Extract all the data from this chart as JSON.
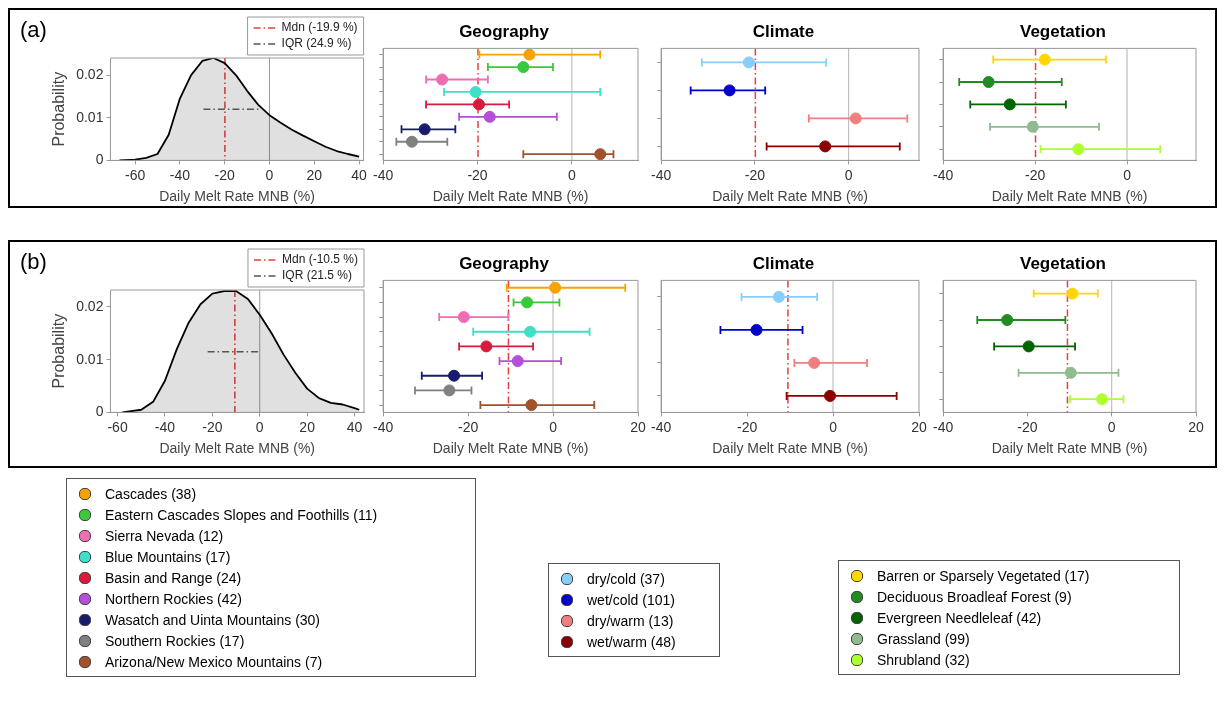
{
  "chart_data": [
    {
      "type": "area",
      "ylabel": "Probability",
      "xlabel": "Daily Melt Rate MNB (%)",
      "annotations": [
        "(a)"
      ],
      "xlim": [
        -71,
        42
      ],
      "xticks": [
        -60,
        -40,
        -20,
        0,
        20,
        40
      ],
      "ylim": [
        0,
        0.024
      ],
      "yticks": [
        0,
        0.01,
        0.02
      ],
      "grid": false,
      "legend": "top right",
      "marker": "none",
      "ref_lines": [
        {
          "axis": "x",
          "value": 0,
          "color": "#808080"
        },
        {
          "axis": "x",
          "value": -19.9,
          "label": "Mdn (-19.9 %)",
          "color": "#e8403c",
          "line_style": "dashed"
        }
      ],
      "series": [
        {
          "type": "area",
          "color": "#000000",
          "x": [
            -67,
            -60,
            -55,
            -50,
            -45,
            -40,
            -35,
            -30,
            -25,
            -20,
            -15,
            -10,
            -5,
            0,
            5,
            10,
            15,
            20,
            25,
            30,
            35,
            40
          ],
          "values": [
            0,
            0.0002,
            0.0006,
            0.0015,
            0.006,
            0.0145,
            0.02,
            0.0233,
            0.024,
            0.0228,
            0.02,
            0.0163,
            0.013,
            0.0106,
            0.0088,
            0.0072,
            0.0058,
            0.0045,
            0.0032,
            0.0022,
            0.0015,
            0.0009
          ]
        },
        {
          "type": "line",
          "name": "IQR (24.9 %)",
          "color": "#555555",
          "line_style": "dashed",
          "x": [
            -29.5,
            -4.6
          ],
          "values": [
            0.012,
            0.012
          ]
        }
      ]
    },
    {
      "type": "scatter",
      "orientation": "horizontal",
      "title": "Geography",
      "xlabel": "Daily Melt Rate MNB (%)",
      "categories": [
        null,
        null,
        null,
        null,
        null,
        null,
        null,
        null,
        null
      ],
      "xlim": [
        -40,
        14
      ],
      "xticks": [
        -40,
        -20,
        0
      ],
      "grid": false,
      "tick_labels": "x",
      "legend": "bottom",
      "marker": "circle",
      "ref_lines": [
        {
          "axis": "x",
          "value": 0,
          "color": "#a0a0a0"
        },
        {
          "axis": "x",
          "value": -19.9,
          "color": "#e8403c",
          "line_style": "dashed"
        }
      ],
      "series": [
        {
          "name": "Cascades (38)",
          "color": "#f5a300",
          "values": [
            -9.0,
            null,
            null,
            null,
            null,
            null,
            null,
            null,
            null
          ],
          "errors": [
            [
              -19.6,
              6.0
            ],
            null,
            null,
            null,
            null,
            null,
            null,
            null,
            null
          ]
        },
        {
          "name": "Eastern Cascades Slopes and Foothills (11)",
          "color": "#3cc83c",
          "values": [
            null,
            -10.3,
            null,
            null,
            null,
            null,
            null,
            null,
            null
          ],
          "errors": [
            null,
            [
              -17.8,
              -4.0
            ],
            null,
            null,
            null,
            null,
            null,
            null,
            null
          ]
        },
        {
          "name": "Sierra Nevada (12)",
          "color": "#ee6eb4",
          "values": [
            null,
            null,
            -27.5,
            null,
            null,
            null,
            null,
            null,
            null
          ],
          "errors": [
            null,
            null,
            [
              -30.9,
              -17.8
            ],
            null,
            null,
            null,
            null,
            null,
            null
          ]
        },
        {
          "name": "Blue Mountains (17)",
          "color": "#40e0c8",
          "values": [
            null,
            null,
            null,
            -20.4,
            null,
            null,
            null,
            null,
            null
          ],
          "errors": [
            null,
            null,
            null,
            [
              -27.1,
              6.0
            ],
            null,
            null,
            null,
            null,
            null
          ]
        },
        {
          "name": "Basin and Range (24)",
          "color": "#d81b3c",
          "values": [
            null,
            null,
            null,
            null,
            -19.7,
            null,
            null,
            null,
            null
          ],
          "errors": [
            null,
            null,
            null,
            null,
            [
              -30.9,
              -13.3
            ],
            null,
            null,
            null,
            null
          ]
        },
        {
          "name": "Northern Rockies (42)",
          "color": "#b44fd8",
          "values": [
            null,
            null,
            null,
            null,
            null,
            -17.4,
            null,
            null,
            null
          ],
          "errors": [
            null,
            null,
            null,
            null,
            null,
            [
              -23.9,
              -3.2
            ],
            null,
            null,
            null
          ]
        },
        {
          "name": "Wasatch and Uinta Mountains (30)",
          "color": "#1a1a6e",
          "values": [
            null,
            null,
            null,
            null,
            null,
            null,
            -31.2,
            null,
            null
          ],
          "errors": [
            null,
            null,
            null,
            null,
            null,
            null,
            [
              -36.1,
              -24.7
            ],
            null,
            null
          ]
        },
        {
          "name": "Southern Rockies (17)",
          "color": "#808080",
          "values": [
            null,
            null,
            null,
            null,
            null,
            null,
            null,
            -33.9,
            null
          ],
          "errors": [
            null,
            null,
            null,
            null,
            null,
            null,
            null,
            [
              -37.2,
              -26.4
            ],
            null
          ]
        },
        {
          "name": "Arizona/New Mexico Mountains (7)",
          "color": "#a0522d",
          "values": [
            null,
            null,
            null,
            null,
            null,
            null,
            null,
            null,
            6.0
          ],
          "errors": [
            null,
            null,
            null,
            null,
            null,
            null,
            null,
            null,
            [
              -10.3,
              8.8
            ]
          ]
        }
      ]
    },
    {
      "type": "scatter",
      "orientation": "horizontal",
      "title": "Climate",
      "xlabel": "Daily Melt Rate MNB (%)",
      "categories": [
        null,
        null,
        null,
        null
      ],
      "xlim": [
        -40,
        15
      ],
      "xticks": [
        -40,
        -20,
        0
      ],
      "grid": false,
      "tick_labels": "x",
      "legend": "bottom",
      "marker": "circle",
      "ref_lines": [
        {
          "axis": "x",
          "value": 0,
          "color": "#a0a0a0"
        },
        {
          "axis": "x",
          "value": -19.9,
          "color": "#e8403c",
          "line_style": "dashed"
        }
      ],
      "series": [
        {
          "name": "dry/cold (37)",
          "color": "#87cefa",
          "values": [
            -21.3,
            null,
            null,
            null
          ],
          "errors": [
            [
              -31.3,
              -4.8
            ],
            null,
            null,
            null
          ]
        },
        {
          "name": "wet/cold (101)",
          "color": "#0000cd",
          "values": [
            null,
            -25.4,
            null,
            null
          ],
          "errors": [
            null,
            [
              -33.7,
              -17.8
            ],
            null,
            null
          ]
        },
        {
          "name": "dry/warm (13)",
          "color": "#f08080",
          "values": [
            null,
            null,
            1.5,
            null
          ],
          "errors": [
            null,
            null,
            [
              -8.5,
              12.5
            ],
            null
          ]
        },
        {
          "name": "wet/warm (48)",
          "color": "#8b0000",
          "values": [
            null,
            null,
            null,
            -5.0
          ],
          "errors": [
            null,
            null,
            null,
            [
              -17.5,
              10.9
            ]
          ]
        }
      ]
    },
    {
      "type": "scatter",
      "orientation": "horizontal",
      "title": "Vegetation",
      "xlabel": "Daily Melt Rate MNB (%)",
      "categories": [
        null,
        null,
        null,
        null,
        null
      ],
      "xlim": [
        -40,
        15
      ],
      "xticks": [
        -40,
        -20,
        0
      ],
      "grid": false,
      "tick_labels": "x",
      "legend": "bottom",
      "marker": "circle",
      "ref_lines": [
        {
          "axis": "x",
          "value": 0,
          "color": "#a0a0a0"
        },
        {
          "axis": "x",
          "value": -19.9,
          "color": "#e8403c",
          "line_style": "dashed"
        }
      ],
      "series": [
        {
          "name": "Barren or Sparsely Vegetated (17)",
          "color": "#ffd700",
          "values": [
            -17.9,
            null,
            null,
            null,
            null
          ],
          "errors": [
            [
              -29.1,
              -4.6
            ],
            null,
            null,
            null,
            null
          ]
        },
        {
          "name": "Deciduous Broadleaf Forest (9)",
          "color": "#228b22",
          "values": [
            null,
            -30.1,
            null,
            null,
            null
          ],
          "errors": [
            null,
            [
              -36.5,
              -14.2
            ],
            null,
            null,
            null
          ]
        },
        {
          "name": "Evergreen Needleleaf (42)",
          "color": "#006400",
          "values": [
            null,
            null,
            -25.5,
            null,
            null
          ],
          "errors": [
            null,
            null,
            [
              -34.1,
              -13.3
            ],
            null,
            null
          ]
        },
        {
          "name": "Grassland (99)",
          "color": "#8fbc8f",
          "values": [
            null,
            null,
            null,
            -20.5,
            null
          ],
          "errors": [
            null,
            null,
            null,
            [
              -29.8,
              -6.1
            ],
            null
          ]
        },
        {
          "name": "Shrubland (32)",
          "color": "#adff2f",
          "values": [
            null,
            null,
            null,
            null,
            -10.6
          ],
          "errors": [
            null,
            null,
            null,
            null,
            [
              -18.8,
              7.2
            ]
          ]
        }
      ]
    },
    {
      "type": "area",
      "ylabel": "Probability",
      "xlabel": "Daily Melt Rate MNB (%)",
      "annotations": [
        "(b)"
      ],
      "xlim": [
        -63,
        44
      ],
      "xticks": [
        -60,
        -40,
        -20,
        0,
        20,
        40
      ],
      "ylim": [
        0,
        0.0232
      ],
      "yticks": [
        0,
        0.01,
        0.02
      ],
      "grid": false,
      "legend": "top right",
      "marker": "none",
      "ref_lines": [
        {
          "axis": "x",
          "value": 0,
          "color": "#808080"
        },
        {
          "axis": "x",
          "value": -10.5,
          "label": "Mdn (-10.5 %)",
          "color": "#e8403c",
          "line_style": "dashed"
        }
      ],
      "series": [
        {
          "type": "area",
          "color": "#000000",
          "x": [
            -58,
            -50,
            -45,
            -40,
            -35,
            -30,
            -25,
            -20,
            -15,
            -10,
            -5,
            0,
            5,
            10,
            15,
            20,
            25,
            30,
            35,
            40,
            42
          ],
          "values": [
            0,
            0.0005,
            0.002,
            0.006,
            0.012,
            0.017,
            0.0205,
            0.0225,
            0.023,
            0.023,
            0.0215,
            0.0185,
            0.015,
            0.011,
            0.0075,
            0.0045,
            0.0027,
            0.0018,
            0.0015,
            0.0008,
            0.0005
          ]
        },
        {
          "type": "line",
          "name": "IQR (21.5 %)",
          "color": "#555555",
          "line_style": "dashed",
          "x": [
            -22,
            -0.5
          ],
          "values": [
            0.0115,
            0.0115
          ]
        }
      ]
    },
    {
      "type": "scatter",
      "orientation": "horizontal",
      "title": "Geography",
      "xlabel": "Daily Melt Rate MNB (%)",
      "categories": [
        null,
        null,
        null,
        null,
        null,
        null,
        null,
        null,
        null
      ],
      "xlim": [
        -40,
        20
      ],
      "xticks": [
        -40,
        -20,
        0,
        20
      ],
      "grid": false,
      "tick_labels": "x",
      "marker": "circle",
      "ref_lines": [
        {
          "axis": "x",
          "value": 0,
          "color": "#a0a0a0"
        },
        {
          "axis": "x",
          "value": -10.5,
          "color": "#e8403c",
          "line_style": "dashed"
        }
      ],
      "series": [
        {
          "color": "#f5a300",
          "values": [
            0.5,
            null,
            null,
            null,
            null,
            null,
            null,
            null,
            null
          ],
          "errors": [
            [
              -10.9,
              17.0
            ],
            null,
            null,
            null,
            null,
            null,
            null,
            null,
            null
          ]
        },
        {
          "color": "#3cc83c",
          "values": [
            null,
            -6.1,
            null,
            null,
            null,
            null,
            null,
            null,
            null
          ],
          "errors": [
            null,
            [
              -9.3,
              1.5
            ],
            null,
            null,
            null,
            null,
            null,
            null,
            null
          ]
        },
        {
          "color": "#ee6eb4",
          "values": [
            null,
            null,
            -21.0,
            null,
            null,
            null,
            null,
            null,
            null
          ],
          "errors": [
            null,
            null,
            [
              -26.8,
              -10.5
            ],
            null,
            null,
            null,
            null,
            null,
            null
          ]
        },
        {
          "color": "#40e0c8",
          "values": [
            null,
            null,
            null,
            -5.4,
            null,
            null,
            null,
            null,
            null
          ],
          "errors": [
            null,
            null,
            null,
            [
              -18.8,
              8.6
            ],
            null,
            null,
            null,
            null,
            null
          ]
        },
        {
          "color": "#d81b3c",
          "values": [
            null,
            null,
            null,
            null,
            -15.7,
            null,
            null,
            null,
            null
          ],
          "errors": [
            null,
            null,
            null,
            null,
            [
              -22.1,
              -4.7
            ],
            null,
            null,
            null,
            null
          ]
        },
        {
          "color": "#b44fd8",
          "values": [
            null,
            null,
            null,
            null,
            null,
            -8.3,
            null,
            null,
            null
          ],
          "errors": [
            null,
            null,
            null,
            null,
            null,
            [
              -12.6,
              1.9
            ],
            null,
            null,
            null
          ]
        },
        {
          "color": "#1a1a6e",
          "values": [
            null,
            null,
            null,
            null,
            null,
            null,
            -23.3,
            null,
            null
          ],
          "errors": [
            null,
            null,
            null,
            null,
            null,
            null,
            [
              -30.9,
              -16.7
            ],
            null,
            null
          ]
        },
        {
          "color": "#808080",
          "values": [
            null,
            null,
            null,
            null,
            null,
            null,
            null,
            -24.4,
            null
          ],
          "errors": [
            null,
            null,
            null,
            null,
            null,
            null,
            null,
            [
              -32.5,
              -19.2
            ],
            null
          ]
        },
        {
          "color": "#a0522d",
          "values": [
            null,
            null,
            null,
            null,
            null,
            null,
            null,
            null,
            -5.1
          ],
          "errors": [
            null,
            null,
            null,
            null,
            null,
            null,
            null,
            null,
            [
              -17.1,
              9.7
            ]
          ]
        }
      ]
    },
    {
      "type": "scatter",
      "orientation": "horizontal",
      "title": "Climate",
      "xlabel": "Daily Melt Rate MNB (%)",
      "categories": [
        null,
        null,
        null,
        null
      ],
      "xlim": [
        -40,
        20
      ],
      "xticks": [
        -40,
        -20,
        0,
        20
      ],
      "grid": false,
      "tick_labels": "x",
      "marker": "circle",
      "ref_lines": [
        {
          "axis": "x",
          "value": 0,
          "color": "#a0a0a0"
        },
        {
          "axis": "x",
          "value": -10.5,
          "color": "#e8403c",
          "line_style": "dashed"
        }
      ],
      "series": [
        {
          "color": "#87cefa",
          "values": [
            -12.6,
            null,
            null,
            null
          ],
          "errors": [
            [
              -21.3,
              -3.7
            ],
            null,
            null,
            null
          ]
        },
        {
          "color": "#0000cd",
          "values": [
            null,
            -17.8,
            null,
            null
          ],
          "errors": [
            null,
            [
              -26.2,
              -7.1
            ],
            null,
            null
          ]
        },
        {
          "color": "#f08080",
          "values": [
            null,
            null,
            -4.4,
            null
          ],
          "errors": [
            null,
            null,
            [
              -9.0,
              7.9
            ],
            null
          ]
        },
        {
          "color": "#8b0000",
          "values": [
            null,
            null,
            null,
            -0.7
          ],
          "errors": [
            null,
            null,
            null,
            [
              -10.8,
              14.8
            ]
          ]
        }
      ]
    },
    {
      "type": "scatter",
      "orientation": "horizontal",
      "title": "Vegetation",
      "xlabel": "Daily Melt Rate MNB (%)",
      "categories": [
        null,
        null,
        null,
        null,
        null
      ],
      "xlim": [
        -40,
        20
      ],
      "xticks": [
        -40,
        -20,
        0,
        20
      ],
      "grid": false,
      "tick_labels": "x",
      "marker": "circle",
      "ref_lines": [
        {
          "axis": "x",
          "value": 0,
          "color": "#a0a0a0"
        },
        {
          "axis": "x",
          "value": -10.5,
          "color": "#e8403c",
          "line_style": "dashed"
        }
      ],
      "series": [
        {
          "color": "#ffd700",
          "values": [
            -9.3,
            null,
            null,
            null,
            null
          ],
          "errors": [
            [
              -18.5,
              -3.3
            ],
            null,
            null,
            null,
            null
          ]
        },
        {
          "color": "#228b22",
          "values": [
            null,
            -24.8,
            null,
            null,
            null
          ],
          "errors": [
            null,
            [
              -31.9,
              -11.0
            ],
            null,
            null,
            null
          ]
        },
        {
          "color": "#006400",
          "values": [
            null,
            null,
            -19.7,
            null,
            null
          ],
          "errors": [
            null,
            null,
            [
              -27.9,
              -8.7
            ],
            null,
            null
          ]
        },
        {
          "color": "#8fbc8f",
          "values": [
            null,
            null,
            null,
            -9.7,
            null
          ],
          "errors": [
            null,
            null,
            null,
            [
              -22.1,
              1.6
            ],
            null
          ]
        },
        {
          "color": "#adff2f",
          "values": [
            null,
            null,
            null,
            null,
            -2.3
          ],
          "errors": [
            null,
            null,
            null,
            null,
            [
              -9.9,
              2.8
            ]
          ]
        }
      ]
    }
  ]
}
